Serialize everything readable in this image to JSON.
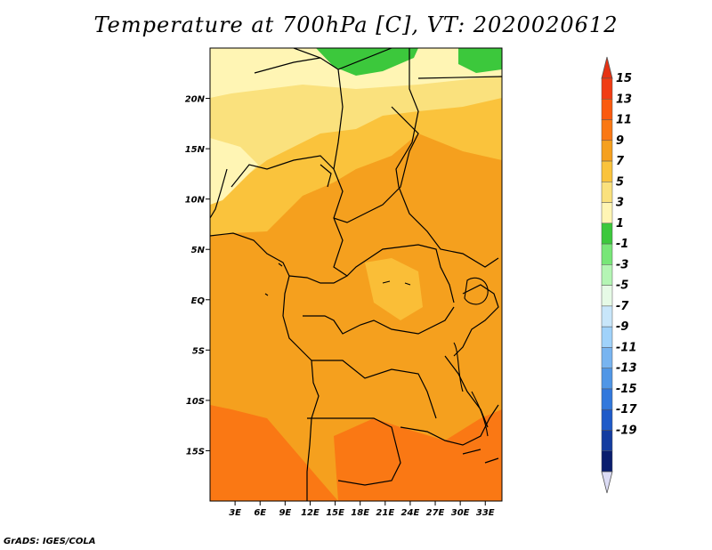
{
  "title": "Temperature at 700hPa [C], VT: 2020020612",
  "credit": "GrADS: IGES/COLA",
  "map": {
    "lon_range": [
      0,
      35
    ],
    "lat_range": [
      -20,
      25
    ],
    "lon_ticks": [
      {
        "lon": 3,
        "label": "3E"
      },
      {
        "lon": 6,
        "label": "6E"
      },
      {
        "lon": 9,
        "label": "9E"
      },
      {
        "lon": 12,
        "label": "12E"
      },
      {
        "lon": 15,
        "label": "15E"
      },
      {
        "lon": 18,
        "label": "18E"
      },
      {
        "lon": 21,
        "label": "21E"
      },
      {
        "lon": 24,
        "label": "24E"
      },
      {
        "lon": 27,
        "label": "27E"
      },
      {
        "lon": 30,
        "label": "30E"
      },
      {
        "lon": 33,
        "label": "33E"
      }
    ],
    "lat_ticks": [
      {
        "lat": 20,
        "label": "20N"
      },
      {
        "lat": 15,
        "label": "15N"
      },
      {
        "lat": 10,
        "label": "10N"
      },
      {
        "lat": 5,
        "label": "5N"
      },
      {
        "lat": 0,
        "label": "EQ"
      },
      {
        "lat": -5,
        "label": "5S"
      },
      {
        "lat": -10,
        "label": "10S"
      },
      {
        "lat": -15,
        "label": "15S"
      }
    ]
  },
  "colorbar": {
    "labels": [
      "15",
      "13",
      "11",
      "9",
      "7",
      "5",
      "3",
      "1",
      "-1",
      "-3",
      "-5",
      "-7",
      "-9",
      "-11",
      "-13",
      "-15",
      "-17",
      "-19"
    ],
    "colors": [
      "#f03c14",
      "#fa5a0f",
      "#fa7814",
      "#f5a01e",
      "#fac33c",
      "#fae17d",
      "#fff5b4",
      "#3cc83c",
      "#78e678",
      "#b4f5b4",
      "#e6fae6",
      "#c8e6fa",
      "#a0d2fa",
      "#78b4f0",
      "#5096e6",
      "#3278dc",
      "#1e5ac8",
      "#143ca0",
      "#0a1e6e"
    ],
    "top_arrow_color": "#e63214",
    "bottom_arrow_color": "#dcdcf5"
  }
}
